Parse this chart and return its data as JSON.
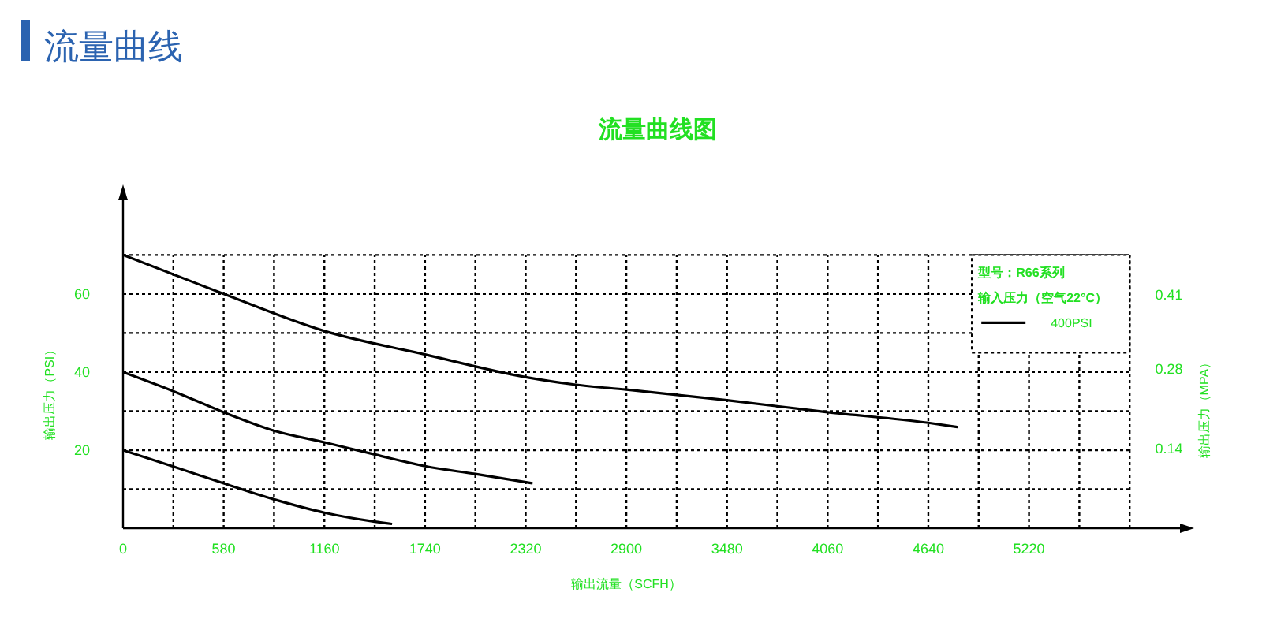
{
  "chart_data": {
    "type": "line",
    "title": "流量曲线",
    "subtitle": "流量曲线图",
    "xlabel": "输出流量（SCFH）",
    "ylabel": "输出压力（PSI）",
    "y2label": "输出压力（MPA）",
    "legend_title": "型号：R66系列",
    "annotations": [
      "输入压力（空气22°C）"
    ],
    "xlim": [
      0,
      6090
    ],
    "xticks": [
      0,
      {
        "value": 290,
        "label": null
      },
      580,
      {
        "value": 870,
        "label": null
      },
      1160,
      {
        "value": 1450,
        "label": null
      },
      1740,
      {
        "value": 2030,
        "label": null
      },
      2320,
      {
        "value": 2610,
        "label": null
      },
      2900,
      {
        "value": 3190,
        "label": null
      },
      3480,
      {
        "value": 3770,
        "label": null
      },
      4060,
      {
        "value": 4350,
        "label": null
      },
      4640,
      {
        "value": 4930,
        "label": null
      },
      5220,
      {
        "value": 5510,
        "label": null
      },
      {
        "value": 5800,
        "label": null
      }
    ],
    "ylim": [
      0,
      84
    ],
    "yticks": [
      {
        "value": 10,
        "label": null
      },
      20,
      {
        "value": 30,
        "label": null
      },
      40,
      {
        "value": 50,
        "label": null
      },
      60,
      {
        "value": 70,
        "label": null
      }
    ],
    "y2lim": [
      0,
      0.48
    ],
    "y2ticks": [
      0.14,
      0.28,
      0.41
    ],
    "grid": true,
    "legend": "top right",
    "line_style": "solid",
    "marker": "none",
    "series": [
      {
        "name": "400PSI",
        "color": "#000000",
        "x": [
          0,
          580,
          1160,
          1740,
          2320,
          2600,
          2900,
          3480,
          4060,
          4640,
          4810
        ],
        "values": [
          70,
          60,
          50.5,
          44.5,
          38.7,
          36.8,
          35.5,
          32.8,
          29.7,
          27,
          25.9
        ]
      },
      {
        "color": "#000000",
        "x": [
          0,
          290,
          580,
          870,
          1160,
          1450,
          1740,
          2030,
          2360
        ],
        "values": [
          40,
          35.1,
          29.7,
          25,
          22,
          18.9,
          15.9,
          13.9,
          11.5
        ]
      },
      {
        "color": "#000000",
        "x": [
          0,
          290,
          580,
          870,
          1160,
          1450,
          1550
        ],
        "values": [
          20,
          15.8,
          11.5,
          7.4,
          4,
          1.7,
          1.1
        ]
      }
    ]
  }
}
